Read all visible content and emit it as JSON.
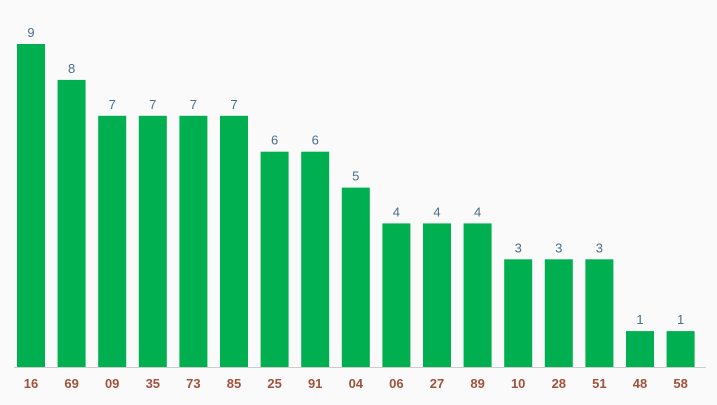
{
  "chart_data": {
    "type": "bar",
    "categories": [
      "16",
      "69",
      "09",
      "35",
      "73",
      "85",
      "25",
      "91",
      "04",
      "06",
      "27",
      "89",
      "10",
      "28",
      "51",
      "48",
      "58"
    ],
    "values": [
      9,
      8,
      7,
      7,
      7,
      7,
      6,
      6,
      5,
      4,
      4,
      4,
      3,
      3,
      3,
      1,
      1
    ],
    "title": "",
    "xlabel": "",
    "ylabel": "",
    "ylim": [
      0,
      9
    ],
    "grid": false,
    "data_labels": true
  },
  "colors": {
    "bar": "#00b050",
    "value_label": "#4a6f8a",
    "tick_label": "#a0523c",
    "baseline": "#cccccc",
    "background": "#fafafa"
  }
}
